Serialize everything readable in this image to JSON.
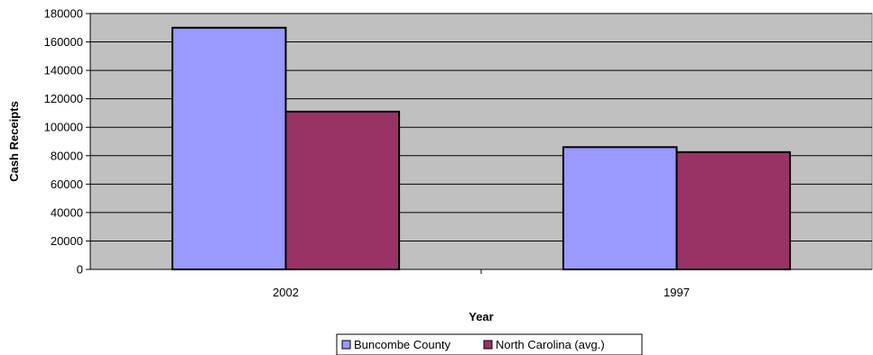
{
  "chart_data": {
    "type": "bar",
    "categories": [
      "2002",
      "1997"
    ],
    "series": [
      {
        "name": "Buncombe County",
        "values": [
          170000,
          86000
        ],
        "color": "#9999ff"
      },
      {
        "name": "North Carolina (avg.)",
        "values": [
          111000,
          82500
        ],
        "color": "#993366"
      }
    ],
    "title": "",
    "xlabel": "Year",
    "ylabel": "Cash Receipts",
    "ylim": [
      0,
      180000
    ],
    "yticks": [
      0,
      20000,
      40000,
      60000,
      80000,
      100000,
      120000,
      140000,
      160000,
      180000
    ],
    "grid": true,
    "plot_background": "#c0c0c0",
    "legend_position": "bottom"
  }
}
